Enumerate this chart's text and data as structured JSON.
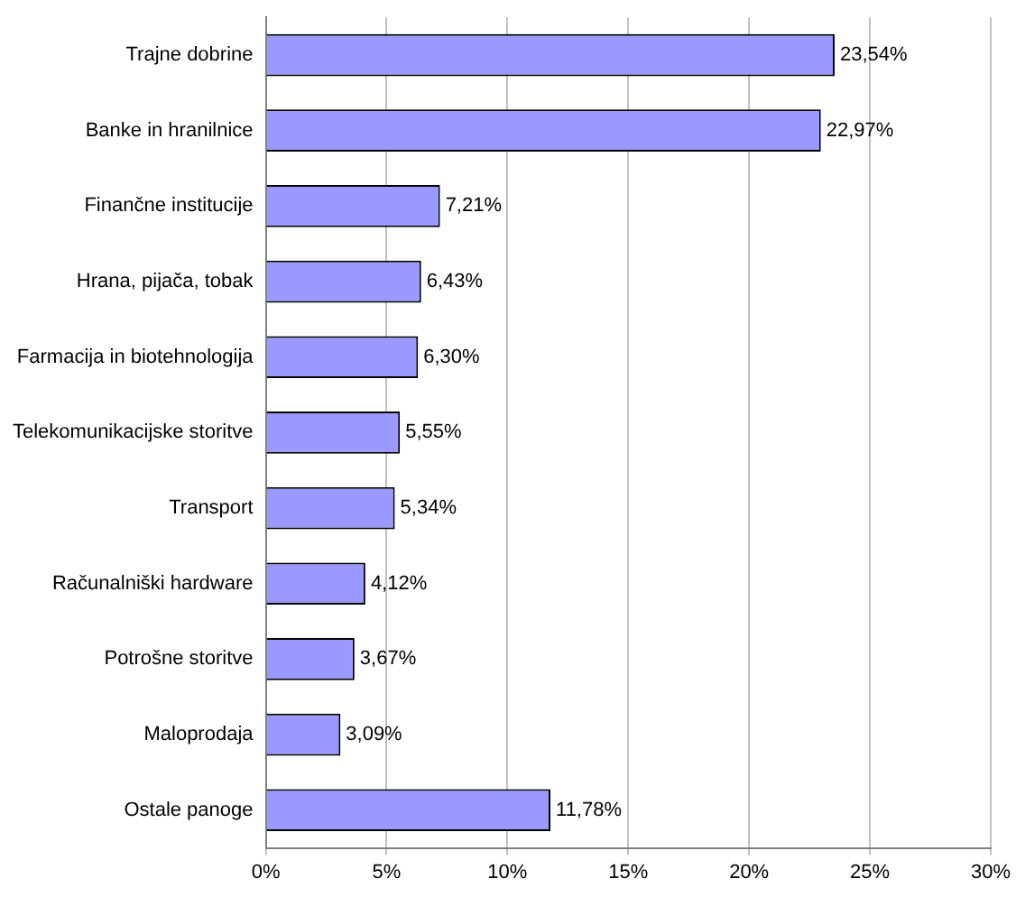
{
  "chart_data": {
    "type": "bar",
    "orientation": "horizontal",
    "categories": [
      "Trajne dobrine",
      "Banke in hranilnice",
      "Finančne institucije",
      "Hrana, pijača, tobak",
      "Farmacija in biotehnologija",
      "Telekomunikacijske storitve",
      "Transport",
      "Računalniški hardware",
      "Potrošne storitve",
      "Maloprodaja",
      "Ostale panoge"
    ],
    "values": [
      23.54,
      22.97,
      7.21,
      6.43,
      6.3,
      5.55,
      5.34,
      4.12,
      3.67,
      3.09,
      11.78
    ],
    "value_labels": [
      "23,54%",
      "22,97%",
      "7,21%",
      "6,43%",
      "6,30%",
      "5,55%",
      "5,34%",
      "4,12%",
      "3,67%",
      "3,09%",
      "11,78%"
    ],
    "color": "#9999ff",
    "xlim": [
      0,
      30
    ],
    "xticks": [
      {
        "value": 0,
        "label": "0%"
      },
      {
        "value": 5,
        "label": "5%"
      },
      {
        "value": 10,
        "label": "10%"
      },
      {
        "value": 15,
        "label": "15%"
      },
      {
        "value": 20,
        "label": "20%"
      },
      {
        "value": 25,
        "label": "25%"
      },
      {
        "value": 30,
        "label": "30%"
      }
    ],
    "grid": "x",
    "legend": false
  }
}
